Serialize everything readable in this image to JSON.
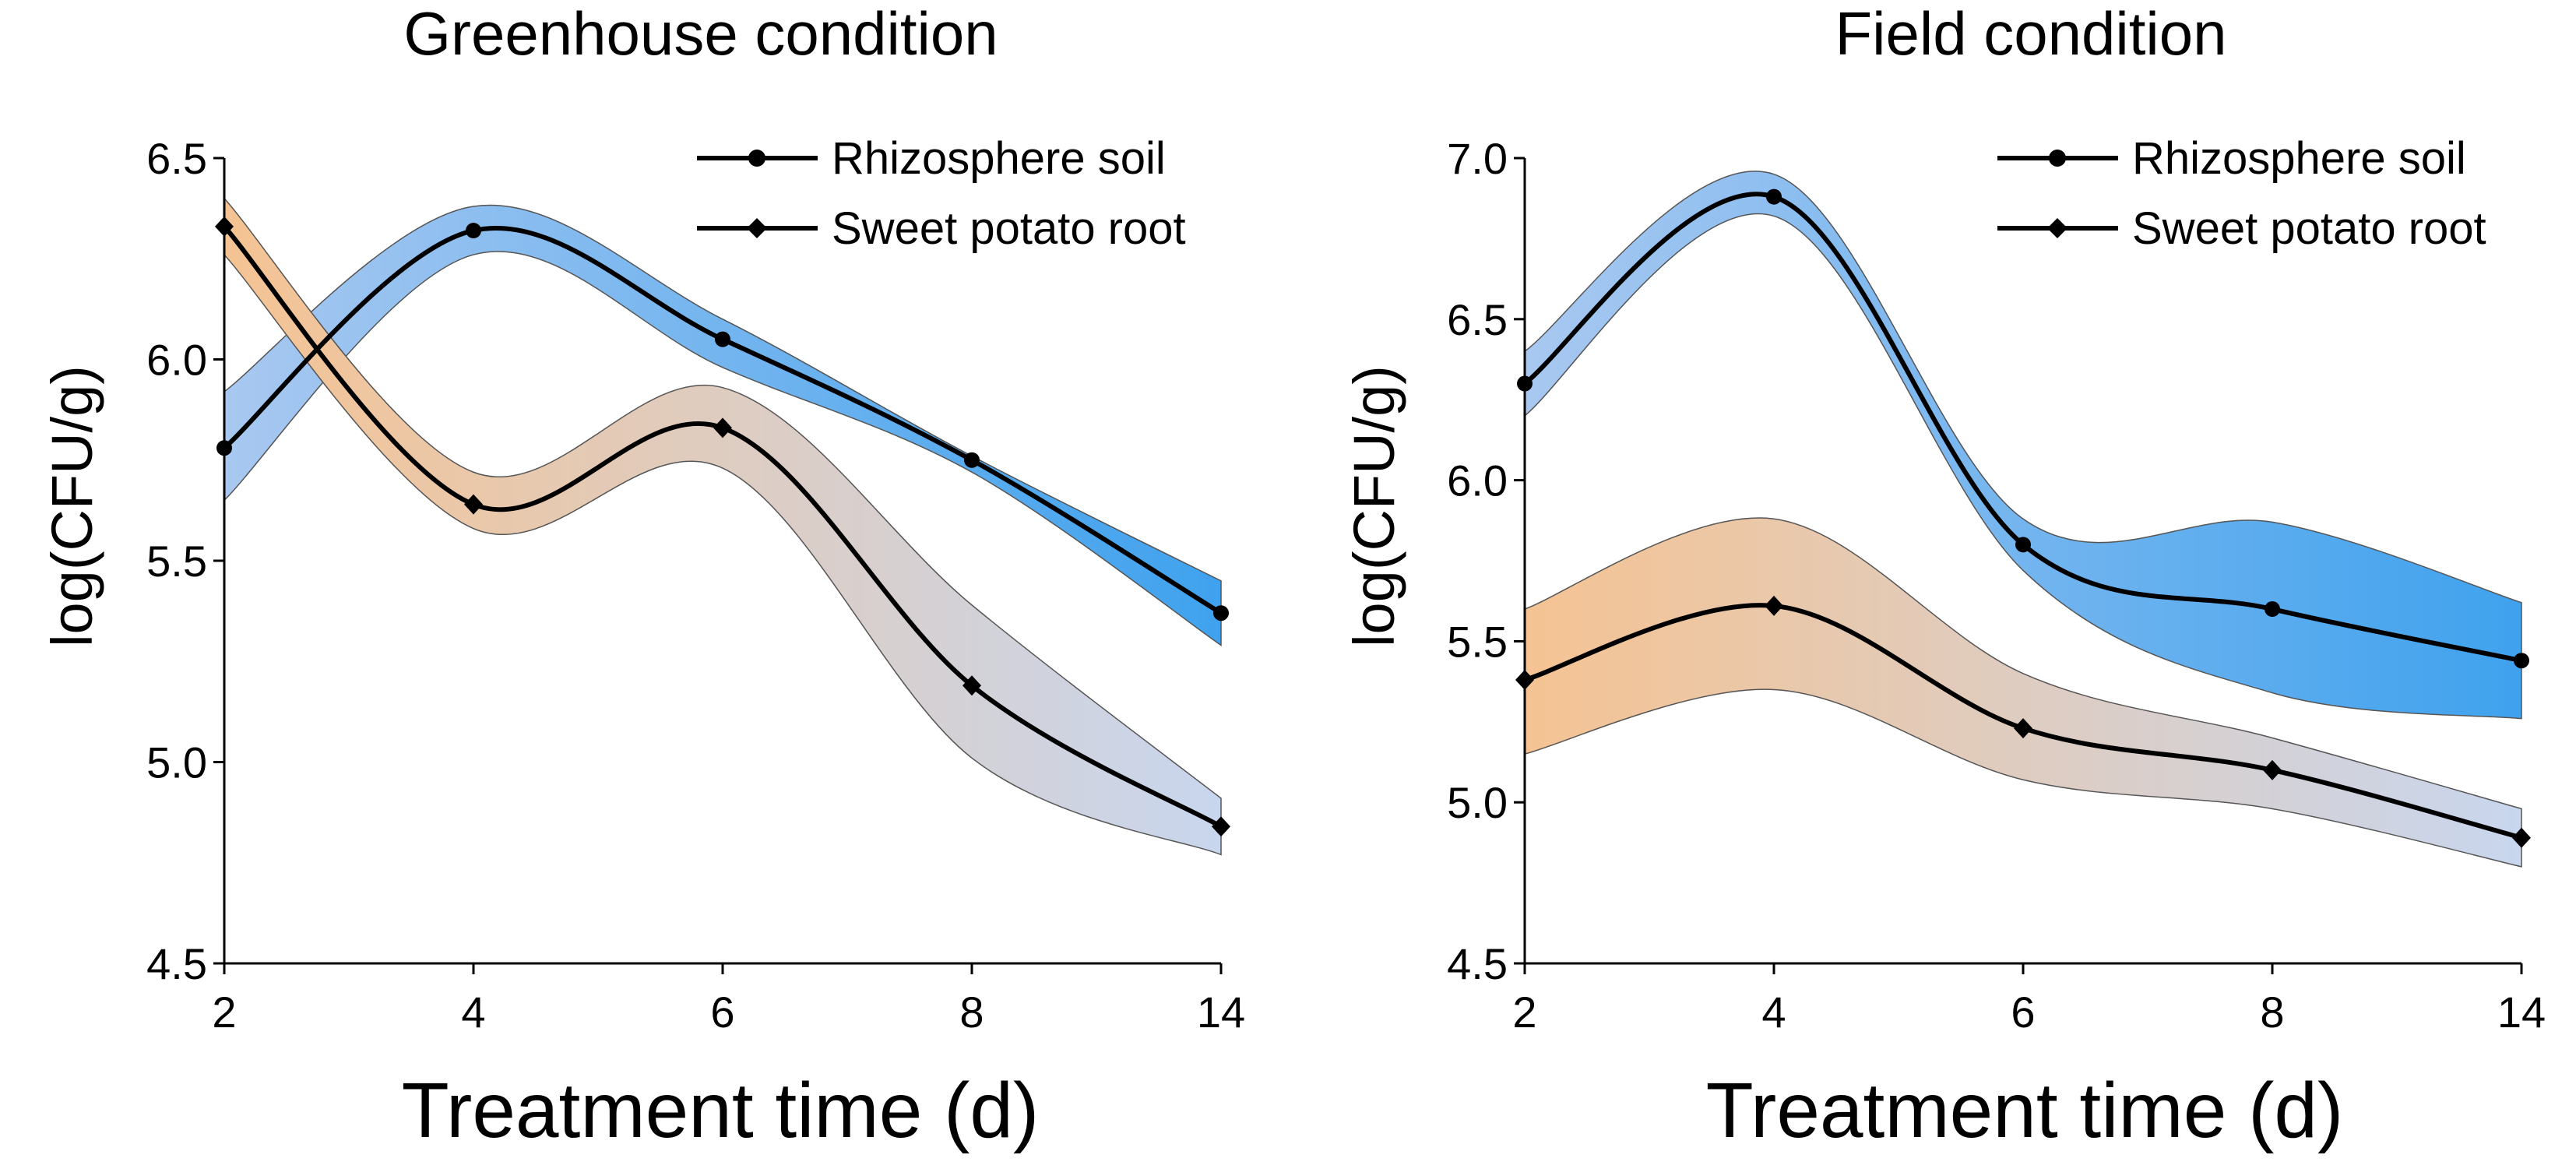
{
  "chart_data": [
    {
      "type": "line",
      "title": "Greenhouse condition",
      "xlabel": "Treatment time (d)",
      "ylabel": "log(CFU/g)",
      "categories": [
        "2",
        "4",
        "6",
        "8",
        "14"
      ],
      "ylim": [
        4.5,
        6.5
      ],
      "yticks": [
        "4.5",
        "5.0",
        "5.5",
        "6.0",
        "6.5"
      ],
      "grid": false,
      "legend_position": "top-right",
      "series": [
        {
          "name": "Rhizosphere soil",
          "marker": "circle",
          "values": [
            5.78,
            6.32,
            6.05,
            5.75,
            5.37
          ],
          "upper": [
            5.92,
            6.38,
            6.1,
            5.76,
            5.45
          ],
          "lower": [
            5.65,
            6.26,
            5.98,
            5.72,
            5.29
          ],
          "band_colors": [
            "#a8c8f0",
            "#3fa2ee"
          ]
        },
        {
          "name": "Sweet potato root",
          "marker": "diamond",
          "values": [
            6.33,
            5.64,
            5.83,
            5.19,
            4.84
          ],
          "upper": [
            6.4,
            5.72,
            5.93,
            5.39,
            4.91
          ],
          "lower": [
            6.26,
            5.58,
            5.73,
            5.01,
            4.77
          ],
          "band_colors": [
            "#f5c393",
            "#c8d6ee"
          ]
        }
      ]
    },
    {
      "type": "line",
      "title": "Field condition",
      "xlabel": "Treatment time (d)",
      "ylabel": "log(CFU/g)",
      "categories": [
        "2",
        "4",
        "6",
        "8",
        "14"
      ],
      "ylim": [
        4.5,
        7.0
      ],
      "yticks": [
        "4.5",
        "5.0",
        "5.5",
        "6.0",
        "6.5",
        "7.0"
      ],
      "grid": false,
      "legend_position": "top-right",
      "series": [
        {
          "name": "Rhizosphere soil",
          "marker": "circle",
          "values": [
            6.3,
            6.88,
            5.8,
            5.6,
            5.44
          ],
          "upper": [
            6.4,
            6.95,
            5.88,
            5.87,
            5.62
          ],
          "lower": [
            6.2,
            6.82,
            5.72,
            5.34,
            5.26
          ],
          "band_colors": [
            "#a8c8f0",
            "#3fa2ee"
          ]
        },
        {
          "name": "Sweet potato root",
          "marker": "diamond",
          "values": [
            5.38,
            5.61,
            5.23,
            5.1,
            4.89
          ],
          "upper": [
            5.6,
            5.88,
            5.4,
            5.2,
            4.98
          ],
          "lower": [
            5.15,
            5.35,
            5.07,
            4.98,
            4.8
          ],
          "band_colors": [
            "#f5c393",
            "#c8d6ee"
          ]
        }
      ]
    }
  ]
}
